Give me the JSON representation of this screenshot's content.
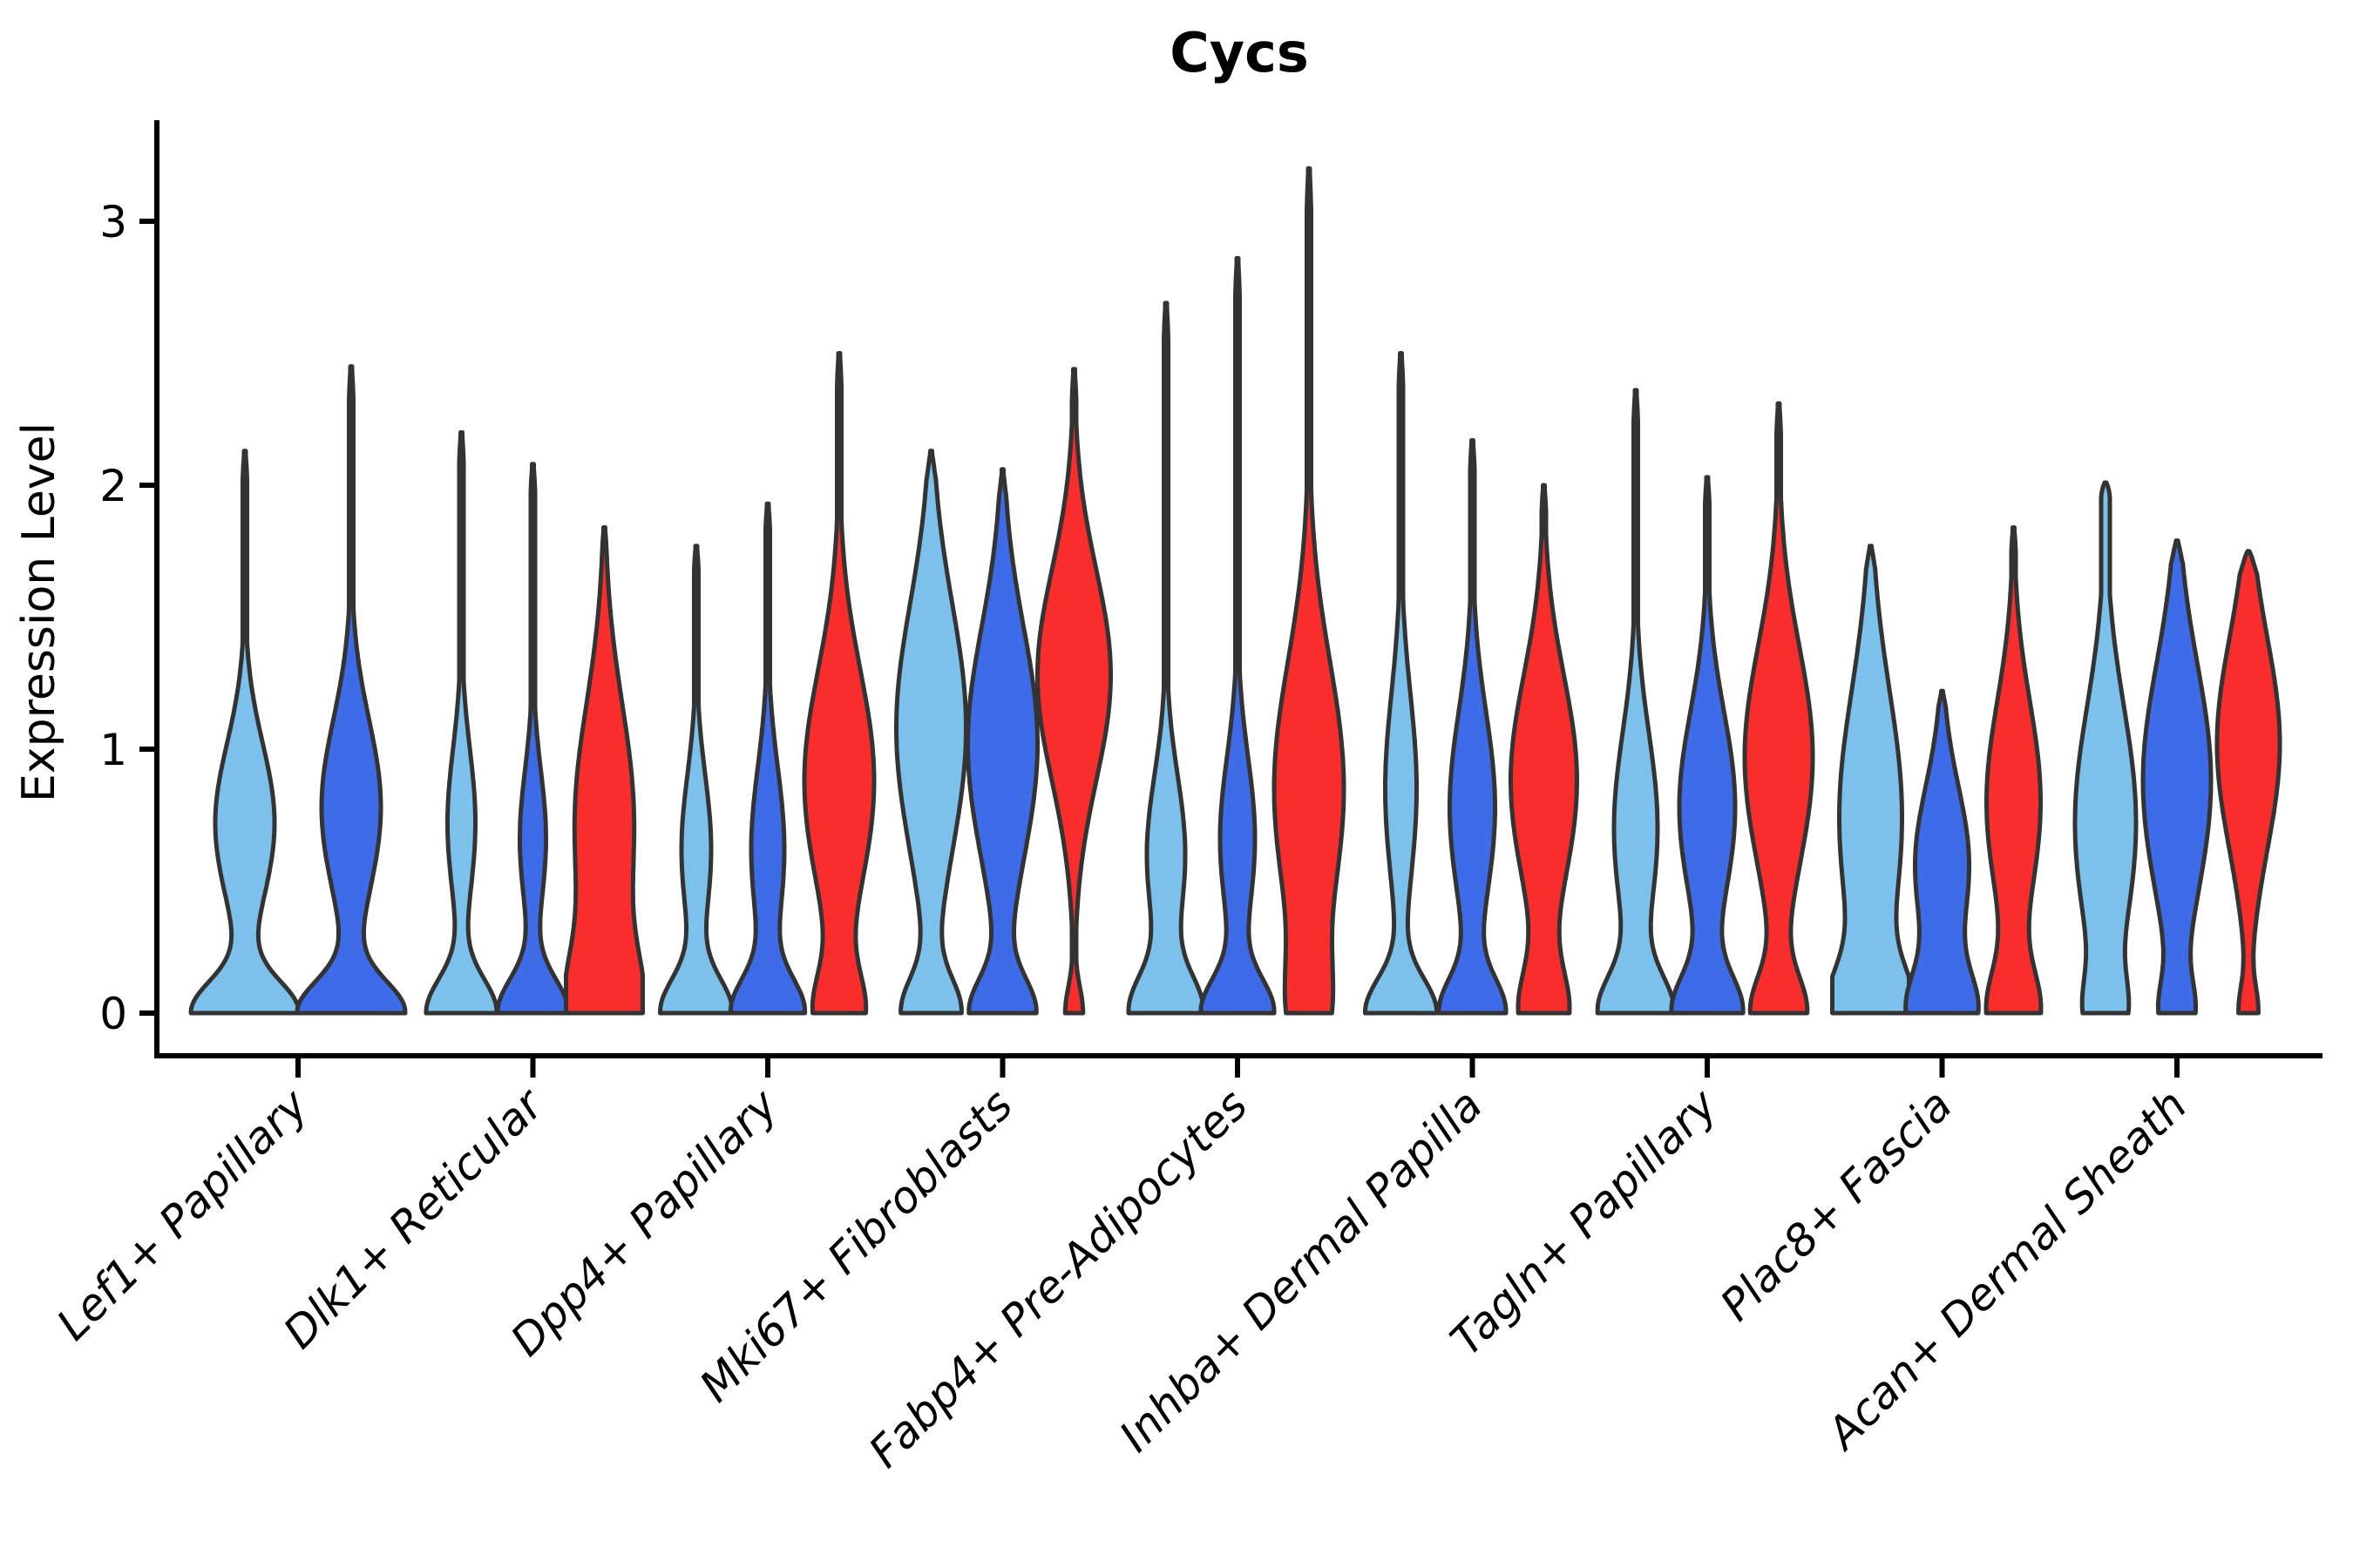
{
  "title": "Cycs",
  "y_axis": {
    "label": "Expression Level",
    "ticks": [
      "0",
      "1",
      "2",
      "3"
    ]
  },
  "colors": {
    "light_blue": "#7CC1EB",
    "dark_blue": "#3E6BE8",
    "red": "#FA2D2D",
    "outline": "#333333",
    "axis": "#000000"
  },
  "chart_data": {
    "type": "violin",
    "title": "Cycs",
    "xlabel": "",
    "ylabel": "Expression Level",
    "ylim": [
      -0.16,
      3.35
    ],
    "yticks": [
      0,
      1,
      2,
      3
    ],
    "grid": false,
    "legend": "none",
    "series_order": [
      "light_blue",
      "dark_blue",
      "red"
    ],
    "categories": [
      "Lef1+ Papillary",
      "Dlk1+ Reticular",
      "Dpp4+ Papillary",
      "Mki67+ Fibroblasts",
      "Fabp4+ Pre-Adipocytes",
      "Inhba+ Dermal Papilla",
      "Tagln+ Papillary",
      "Plac8+ Fascia",
      "Acan+ Dermal Sheath"
    ],
    "groups": [
      {
        "category": "Lef1+ Papillary",
        "violins": [
          {
            "series": "light_blue",
            "max": 2.13,
            "mode": 0.72,
            "spread": 0.3,
            "bulge_hw": 34,
            "foot_hw": 60,
            "foot_s": 0.12,
            "max_hw": 62
          },
          {
            "series": "dark_blue",
            "max": 2.45,
            "mode": 0.78,
            "spread": 0.33,
            "bulge_hw": 34,
            "foot_hw": 60,
            "foot_s": 0.12,
            "max_hw": 62
          }
        ]
      },
      {
        "category": "Dlk1+ Reticular",
        "violins": [
          {
            "series": "light_blue",
            "max": 2.2,
            "mode": 0.72,
            "spread": 0.28,
            "bulge_hw": 16,
            "foot_hw": 40,
            "foot_s": 0.13
          },
          {
            "series": "dark_blue",
            "max": 2.08,
            "mode": 0.66,
            "spread": 0.26,
            "bulge_hw": 15,
            "foot_hw": 40,
            "foot_s": 0.13
          },
          {
            "series": "red",
            "max": 1.84,
            "mode": 0.72,
            "spread": 0.45,
            "bulge_hw": 34,
            "foot_hw": 36,
            "foot_s": 0.22
          }
        ]
      },
      {
        "category": "Dpp4+ Papillary",
        "violins": [
          {
            "series": "light_blue",
            "max": 1.77,
            "mode": 0.62,
            "spread": 0.28,
            "bulge_hw": 17,
            "foot_hw": 40,
            "foot_s": 0.13
          },
          {
            "series": "dark_blue",
            "max": 1.93,
            "mode": 0.62,
            "spread": 0.31,
            "bulge_hw": 19,
            "foot_hw": 40,
            "foot_s": 0.13
          },
          {
            "series": "red",
            "max": 2.5,
            "mode": 0.88,
            "spread": 0.42,
            "bulge_hw": 40,
            "foot_hw": 26,
            "foot_s": 0.15
          }
        ]
      },
      {
        "category": "Mki67+ Fibroblasts",
        "violins": [
          {
            "series": "light_blue",
            "max": 2.13,
            "mode": 1.08,
            "spread": 0.47,
            "bulge_hw": 40,
            "foot_hw": 32,
            "foot_s": 0.13
          },
          {
            "series": "dark_blue",
            "max": 2.06,
            "mode": 1.02,
            "spread": 0.44,
            "bulge_hw": 40,
            "foot_hw": 36,
            "foot_s": 0.13
          },
          {
            "series": "red",
            "max": 2.44,
            "mode": 1.28,
            "spread": 0.4,
            "bulge_hw": 42,
            "foot_hw": 10,
            "foot_s": 0.1
          }
        ]
      },
      {
        "category": "Fabp4+ Pre-Adipocytes",
        "violins": [
          {
            "series": "light_blue",
            "max": 2.69,
            "mode": 0.6,
            "spread": 0.3,
            "bulge_hw": 22,
            "foot_hw": 40,
            "foot_s": 0.14
          },
          {
            "series": "dark_blue",
            "max": 2.86,
            "mode": 0.66,
            "spread": 0.31,
            "bulge_hw": 20,
            "foot_hw": 40,
            "foot_s": 0.13
          },
          {
            "series": "red",
            "max": 3.2,
            "mode": 0.85,
            "spread": 0.48,
            "bulge_hw": 40,
            "foot_hw": 18,
            "foot_s": 0.2
          }
        ]
      },
      {
        "category": "Inhba+ Dermal Papilla",
        "violins": [
          {
            "series": "light_blue",
            "max": 2.5,
            "mode": 0.85,
            "spread": 0.36,
            "bulge_hw": 18,
            "foot_hw": 40,
            "foot_s": 0.13
          },
          {
            "series": "dark_blue",
            "max": 2.17,
            "mode": 0.78,
            "spread": 0.36,
            "bulge_hw": 26,
            "foot_hw": 36,
            "foot_s": 0.13
          },
          {
            "series": "red",
            "max": 2.0,
            "mode": 0.88,
            "spread": 0.4,
            "bulge_hw": 38,
            "foot_hw": 26,
            "foot_s": 0.16
          }
        ]
      },
      {
        "category": "Tagln+ Papillary",
        "violins": [
          {
            "series": "light_blue",
            "max": 2.36,
            "mode": 0.7,
            "spread": 0.36,
            "bulge_hw": 25,
            "foot_hw": 40,
            "foot_s": 0.14
          },
          {
            "series": "dark_blue",
            "max": 2.03,
            "mode": 0.78,
            "spread": 0.36,
            "bulge_hw": 32,
            "foot_hw": 38,
            "foot_s": 0.14
          },
          {
            "series": "red",
            "max": 2.31,
            "mode": 0.97,
            "spread": 0.42,
            "bulge_hw": 39,
            "foot_hw": 30,
            "foot_s": 0.14
          }
        ]
      },
      {
        "category": "Plac8+ Fascia",
        "violins": [
          {
            "series": "light_blue",
            "max": 1.77,
            "mode": 0.74,
            "spread": 0.48,
            "bulge_hw": 36,
            "foot_hw": 40,
            "foot_s": 0.16
          },
          {
            "series": "dark_blue",
            "max": 1.22,
            "mode": 0.56,
            "spread": 0.3,
            "bulge_hw": 31,
            "foot_hw": 36,
            "foot_s": 0.15
          },
          {
            "series": "red",
            "max": 1.84,
            "mode": 0.8,
            "spread": 0.38,
            "bulge_hw": 31,
            "foot_hw": 28,
            "foot_s": 0.16
          }
        ]
      },
      {
        "category": "Acan+ Dermal Sheath",
        "violins": [
          {
            "series": "light_blue",
            "max": 2.01,
            "mode": 0.72,
            "spread": 0.44,
            "bulge_hw": 35,
            "foot_hw": 17,
            "foot_s": 0.13,
            "neck": 5,
            "blunt": true
          },
          {
            "series": "dark_blue",
            "max": 1.79,
            "mode": 0.88,
            "spread": 0.44,
            "bulge_hw": 39,
            "foot_hw": 16,
            "foot_s": 0.12
          },
          {
            "series": "red",
            "max": 1.75,
            "mode": 1.02,
            "spread": 0.4,
            "bulge_hw": 36,
            "foot_hw": 10,
            "foot_s": 0.1
          }
        ]
      }
    ]
  }
}
